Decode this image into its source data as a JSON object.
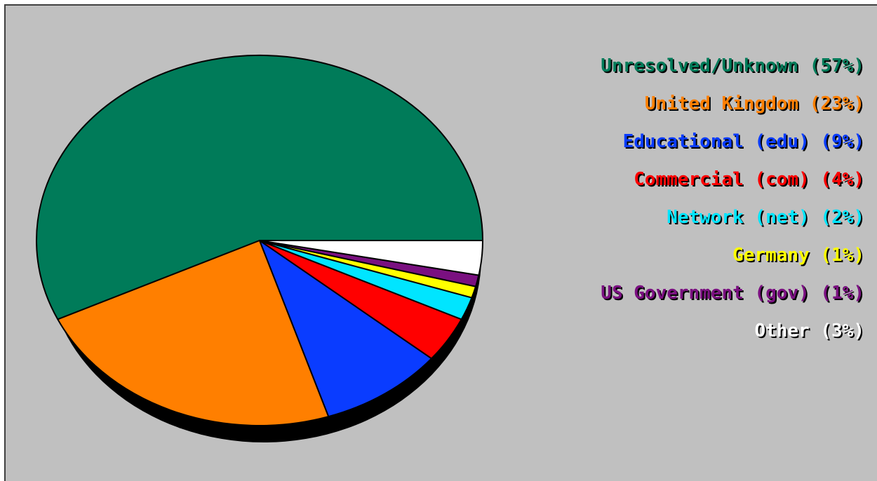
{
  "chart_data": {
    "type": "pie",
    "title": "",
    "start_angle_deg": 0,
    "direction": "counterclockwise",
    "slices": [
      {
        "label": "Unresolved/Unknown",
        "value": 57,
        "value_label": "(57%)",
        "color": "#007b59"
      },
      {
        "label": "United Kingdom",
        "value": 23,
        "value_label": "(23%)",
        "color": "#ff7f00"
      },
      {
        "label": "Educational (edu)",
        "value": 9,
        "value_label": "(9%)",
        "color": "#0a3cff"
      },
      {
        "label": "Commercial (com)",
        "value": 4,
        "value_label": "(4%)",
        "color": "#ff0000"
      },
      {
        "label": "Network (net)",
        "value": 2,
        "value_label": "(2%)",
        "color": "#00e5ff"
      },
      {
        "label": "Germany",
        "value": 1,
        "value_label": "(1%)",
        "color": "#ffff00"
      },
      {
        "label": "US Government (gov)",
        "value": 1,
        "value_label": "(1%)",
        "color": "#7a1080"
      },
      {
        "label": "Other",
        "value": 3,
        "value_label": "(3%)",
        "color": "#ffffff"
      }
    ],
    "legend_position": "right",
    "shadow_color": "#000000",
    "background_color": "#c0c0c0"
  }
}
